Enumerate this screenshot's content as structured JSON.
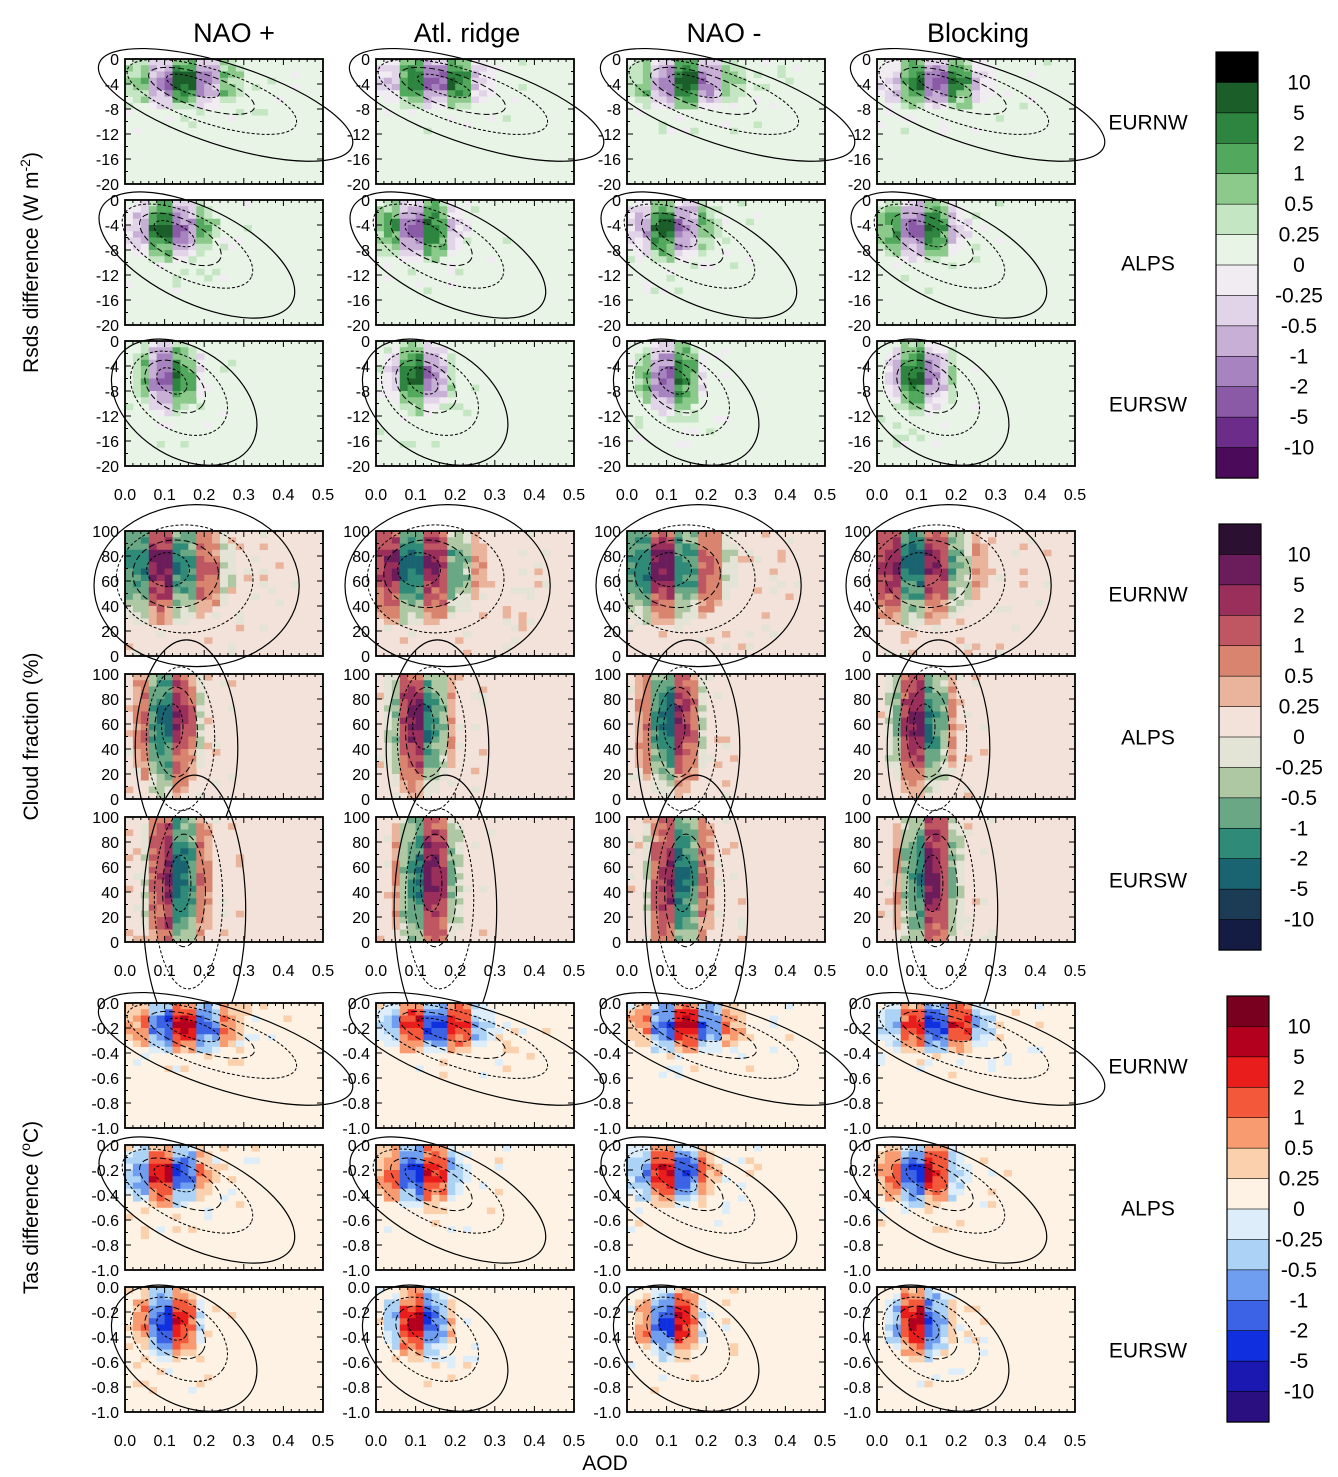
{
  "figure": {
    "columns": [
      "NAO +",
      "Atl. ridge",
      "NAO -",
      "Blocking"
    ],
    "xlabel": "AOD",
    "xticks": [
      "0.0",
      "0.1",
      "0.2",
      "0.3",
      "0.4",
      "0.5"
    ]
  },
  "chart_data": [
    {
      "type": "heatmap",
      "variable": "Rsds difference",
      "ylabel": "Rsds difference (W m-2)",
      "ylabel_main": "Rsds difference (W m",
      "ylabel_sup": "-2",
      "ylabel_close": ")",
      "xlabel": "AOD",
      "xlim": [
        0.0,
        0.5
      ],
      "ylim": [
        -20,
        0
      ],
      "yticks": [
        "0",
        "-4",
        "-8",
        "-12",
        "-16",
        "-20"
      ],
      "regions": [
        "EURNW",
        "ALPS",
        "EURSW"
      ],
      "columns": [
        "NAO +",
        "Atl. ridge",
        "NAO -",
        "Blocking"
      ],
      "colorbar": {
        "labels": [
          "10",
          "5",
          "2",
          "1",
          "0.5",
          "0.25",
          "0",
          "-0.25",
          "-0.5",
          "-1",
          "-2",
          "-5",
          "-10"
        ],
        "colors": [
          "#000000",
          "#1b5e2a",
          "#2e8540",
          "#52a95d",
          "#8cca8c",
          "#c5e6c3",
          "#e8f4e6",
          "#f1ebf2",
          "#e1d3e8",
          "#c8afd6",
          "#a784c0",
          "#8a5aa6",
          "#6c2c8a",
          "#4c0b5a"
        ]
      }
    },
    {
      "type": "heatmap",
      "variable": "Cloud fraction",
      "ylabel": "Cloud fraction (%)",
      "xlabel": "AOD",
      "xlim": [
        0.0,
        0.5
      ],
      "ylim": [
        0,
        100
      ],
      "yticks": [
        "100",
        "80",
        "60",
        "40",
        "20",
        "0"
      ],
      "regions": [
        "EURNW",
        "ALPS",
        "EURSW"
      ],
      "columns": [
        "NAO +",
        "Atl. ridge",
        "NAO -",
        "Blocking"
      ],
      "colorbar": {
        "labels": [
          "10",
          "5",
          "2",
          "1",
          "0.5",
          "0.25",
          "0",
          "-0.25",
          "-0.5",
          "-1",
          "-2",
          "-5",
          "-10"
        ],
        "colors": [
          "#2c1032",
          "#6a1d5a",
          "#9a2f5c",
          "#bf5762",
          "#d9846f",
          "#eab49c",
          "#f2e2d9",
          "#e3e3d6",
          "#aec8a4",
          "#6aa885",
          "#2f8a78",
          "#1a6471",
          "#1c3c55",
          "#141c44"
        ]
      }
    },
    {
      "type": "heatmap",
      "variable": "Tas difference",
      "ylabel": "Tas difference (oC)",
      "ylabel_main": "Tas difference (",
      "ylabel_sup": "o",
      "ylabel_close": "C)",
      "xlabel": "AOD",
      "xlim": [
        0.0,
        0.5
      ],
      "ylim": [
        -1.0,
        0.0
      ],
      "yticks": [
        "0.0",
        "-0.2",
        "-0.4",
        "-0.6",
        "-0.8",
        "-1.0"
      ],
      "regions": [
        "EURNW",
        "ALPS",
        "EURSW"
      ],
      "columns": [
        "NAO +",
        "Atl. ridge",
        "NAO -",
        "Blocking"
      ],
      "colorbar": {
        "labels": [
          "10",
          "5",
          "2",
          "1",
          "0.5",
          "0.25",
          "0",
          "-0.25",
          "-0.5",
          "-1",
          "-2",
          "-5",
          "-10"
        ],
        "colors": [
          "#7a0020",
          "#b3001e",
          "#ea1d1d",
          "#f4583a",
          "#f89b70",
          "#fbd0ad",
          "#fdf2e3",
          "#ddeefa",
          "#acd2f6",
          "#6f9df0",
          "#3c63e6",
          "#1030e0",
          "#1a18b0",
          "#2a0f80"
        ]
      }
    }
  ]
}
